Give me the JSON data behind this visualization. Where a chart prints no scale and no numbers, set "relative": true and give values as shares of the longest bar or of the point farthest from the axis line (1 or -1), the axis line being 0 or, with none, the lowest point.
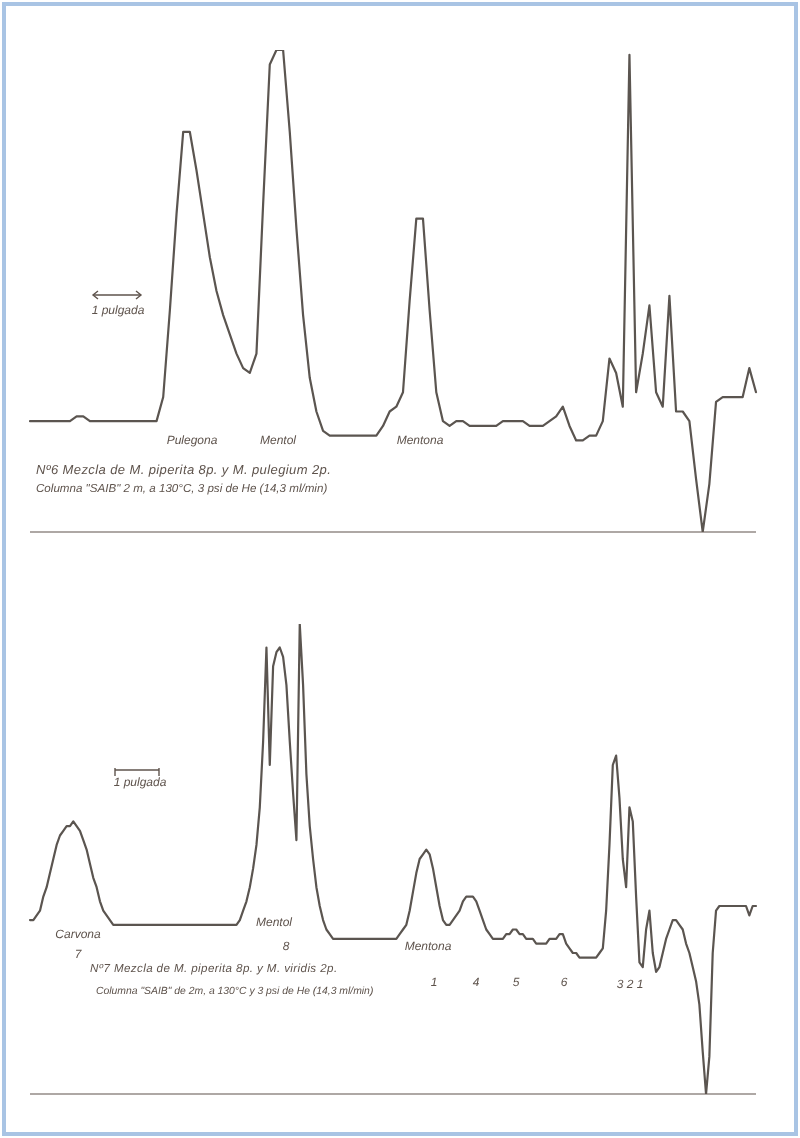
{
  "chart_data": [
    {
      "type": "line",
      "title": "Nº6 Mezcla de M. piperita 8p. y M. pulegium 2p.",
      "subtitle": "Columna \"SAIB\" 2 m, a 130°C, 3 psi de He (14,3 ml/min)",
      "annotations": [
        "Pulegona",
        "Mentol",
        "Mentona",
        "1 pulgada"
      ],
      "relative": true,
      "marker": "none",
      "color": "#5b5550",
      "categories": [
        null,
        null,
        null,
        null,
        null,
        null,
        null,
        null,
        null,
        null,
        null,
        null,
        null,
        null,
        null,
        null,
        null,
        null,
        null,
        null,
        null,
        null,
        null,
        null,
        null,
        null,
        null,
        null,
        null,
        null,
        null,
        null,
        null,
        null,
        null,
        null,
        null,
        null,
        null,
        null,
        null,
        null,
        null,
        null,
        null,
        null,
        null,
        null,
        null,
        null,
        null,
        null,
        null,
        null,
        null,
        null,
        null,
        null,
        null,
        null,
        null,
        null,
        null,
        null,
        null,
        null,
        null,
        null,
        null,
        null,
        null,
        null,
        null,
        null,
        null,
        null,
        null,
        null,
        null,
        null,
        null,
        null,
        null,
        null,
        null,
        null,
        null,
        null,
        null,
        null,
        null,
        null,
        null,
        null,
        null,
        null,
        null,
        null,
        null,
        null,
        null,
        null,
        null,
        null,
        null,
        null,
        null,
        null,
        null,
        null
      ],
      "values": [
        0.23,
        0.23,
        0.23,
        0.23,
        0.23,
        0.23,
        0.23,
        0.24,
        0.24,
        0.23,
        0.23,
        0.23,
        0.23,
        0.23,
        0.23,
        0.23,
        0.23,
        0.23,
        0.23,
        0.23,
        0.28,
        0.46,
        0.66,
        0.83,
        0.83,
        0.75,
        0.66,
        0.57,
        0.5,
        0.45,
        0.41,
        0.37,
        0.34,
        0.33,
        0.37,
        0.68,
        0.97,
        1,
        1,
        0.83,
        0.63,
        0.45,
        0.32,
        0.25,
        0.21,
        0.2,
        0.2,
        0.2,
        0.2,
        0.2,
        0.2,
        0.2,
        0.2,
        0.22,
        0.25,
        0.26,
        0.29,
        0.48,
        0.65,
        0.65,
        0.46,
        0.29,
        0.23,
        0.22,
        0.23,
        0.23,
        0.22,
        0.22,
        0.22,
        0.22,
        0.22,
        0.23,
        0.23,
        0.23,
        0.23,
        0.22,
        0.22,
        0.22,
        0.23,
        0.24,
        0.26,
        0.22,
        0.19,
        0.19,
        0.2,
        0.2,
        0.23,
        0.36,
        0.33,
        0.26,
        0.99,
        0.29,
        0.37,
        0.47,
        0.29,
        0.26,
        0.49,
        0.25,
        0.25,
        0.23,
        0.11,
        0,
        0.1,
        0.27,
        0.28,
        0.28,
        0.28,
        0.28,
        0.34,
        0.29
      ]
    },
    {
      "type": "line",
      "title": "Nº7 Mezcla de M. piperita 8p. y M. viridis 2p.",
      "subtitle": "Columna \"SAIB\" de 2m, a 130°C y 3 psi de He (14,3 ml/min)",
      "annotations": [
        "Carvona",
        "7",
        "Mentol",
        "8",
        "Mentona",
        "1",
        "4",
        "5",
        "6",
        "3 2 1",
        "1 pulgada"
      ],
      "relative": true,
      "marker": "none",
      "color": "#5b5550",
      "categories": [
        null,
        null,
        null,
        null,
        null,
        null,
        null,
        null,
        null,
        null,
        null,
        null,
        null,
        null,
        null,
        null,
        null,
        null,
        null,
        null,
        null,
        null,
        null,
        null,
        null,
        null,
        null,
        null,
        null,
        null,
        null,
        null,
        null,
        null,
        null,
        null,
        null,
        null,
        null,
        null,
        null,
        null,
        null,
        null,
        null,
        null,
        null,
        null,
        null,
        null,
        null,
        null,
        null,
        null,
        null,
        null,
        null,
        null,
        null,
        null,
        null,
        null,
        null,
        null,
        null,
        null,
        null,
        null,
        null,
        null,
        null,
        null,
        null,
        null,
        null,
        null,
        null,
        null,
        null,
        null,
        null,
        null,
        null,
        null,
        null,
        null,
        null,
        null,
        null,
        null,
        null,
        null,
        null,
        null,
        null,
        null,
        null,
        null,
        null,
        null,
        null,
        null,
        null,
        null,
        null,
        null,
        null,
        null,
        null,
        null,
        null,
        null,
        null,
        null,
        null,
        null,
        null,
        null,
        null,
        null,
        null,
        null,
        null,
        null,
        null,
        null,
        null,
        null,
        null,
        null,
        null,
        null,
        null,
        null,
        null,
        null,
        null,
        null,
        null,
        null,
        null,
        null,
        null,
        null,
        null,
        null,
        null,
        null,
        null,
        null,
        null,
        null,
        null,
        null,
        null,
        null,
        null,
        null,
        null,
        null,
        null,
        null,
        null,
        null,
        null,
        null,
        null,
        null,
        null,
        null,
        null,
        null,
        null,
        null,
        null,
        null,
        null,
        null,
        null,
        null,
        null,
        null,
        null,
        null,
        null,
        null,
        null,
        null,
        null,
        null,
        null,
        null,
        null,
        null,
        null,
        null,
        null,
        null,
        null,
        null,
        null,
        null,
        null,
        null,
        null,
        null,
        null,
        null,
        null,
        null,
        null,
        null,
        null,
        null,
        null,
        null,
        null,
        null,
        null
      ],
      "values": [
        0.37,
        0.37,
        0.38,
        0.39,
        0.42,
        0.44,
        0.47,
        0.5,
        0.53,
        0.55,
        0.56,
        0.57,
        0.57,
        0.58,
        0.57,
        0.56,
        0.54,
        0.52,
        0.49,
        0.46,
        0.44,
        0.41,
        0.39,
        0.38,
        0.37,
        0.36,
        0.36,
        0.36,
        0.36,
        0.36,
        0.36,
        0.36,
        0.36,
        0.36,
        0.36,
        0.36,
        0.36,
        0.36,
        0.36,
        0.36,
        0.36,
        0.36,
        0.36,
        0.36,
        0.36,
        0.36,
        0.36,
        0.36,
        0.36,
        0.36,
        0.36,
        0.36,
        0.36,
        0.36,
        0.36,
        0.36,
        0.36,
        0.36,
        0.36,
        0.36,
        0.36,
        0.36,
        0.36,
        0.37,
        0.39,
        0.41,
        0.44,
        0.48,
        0.53,
        0.61,
        0.75,
        0.95,
        0.7,
        0.91,
        0.94,
        0.95,
        0.93,
        0.87,
        0.75,
        0.64,
        0.54,
        1,
        0.87,
        0.68,
        0.57,
        0.5,
        0.44,
        0.4,
        0.37,
        0.35,
        0.34,
        0.33,
        0.33,
        0.33,
        0.33,
        0.33,
        0.33,
        0.33,
        0.33,
        0.33,
        0.33,
        0.33,
        0.33,
        0.33,
        0.33,
        0.33,
        0.33,
        0.33,
        0.33,
        0.33,
        0.33,
        0.34,
        0.35,
        0.36,
        0.39,
        0.43,
        0.47,
        0.5,
        0.51,
        0.52,
        0.51,
        0.48,
        0.44,
        0.4,
        0.37,
        0.36,
        0.36,
        0.37,
        0.38,
        0.39,
        0.41,
        0.42,
        0.42,
        0.42,
        0.41,
        0.39,
        0.37,
        0.35,
        0.34,
        0.33,
        0.33,
        0.33,
        0.33,
        0.34,
        0.34,
        0.35,
        0.35,
        0.34,
        0.34,
        0.33,
        0.33,
        0.33,
        0.32,
        0.32,
        0.32,
        0.32,
        0.33,
        0.33,
        0.33,
        0.34,
        0.34,
        0.32,
        0.31,
        0.3,
        0.3,
        0.29,
        0.29,
        0.29,
        0.29,
        0.29,
        0.29,
        0.3,
        0.31,
        0.39,
        0.53,
        0.7,
        0.72,
        0.63,
        0.5,
        0.44,
        0.61,
        0.58,
        0.42,
        0.28,
        0.27,
        0.35,
        0.39,
        0.3,
        0.26,
        0.27,
        0.3,
        0.33,
        0.35,
        0.37,
        0.37,
        0.36,
        0.35,
        0.32,
        0.3,
        0.27,
        0.24,
        0.19,
        0.09,
        0,
        0.08,
        0.3,
        0.39,
        0.4,
        0.4,
        0.4,
        0.4,
        0.4,
        0.4,
        0.4,
        0.4,
        0.4,
        0.38,
        0.4,
        0.4
      ]
    }
  ]
}
